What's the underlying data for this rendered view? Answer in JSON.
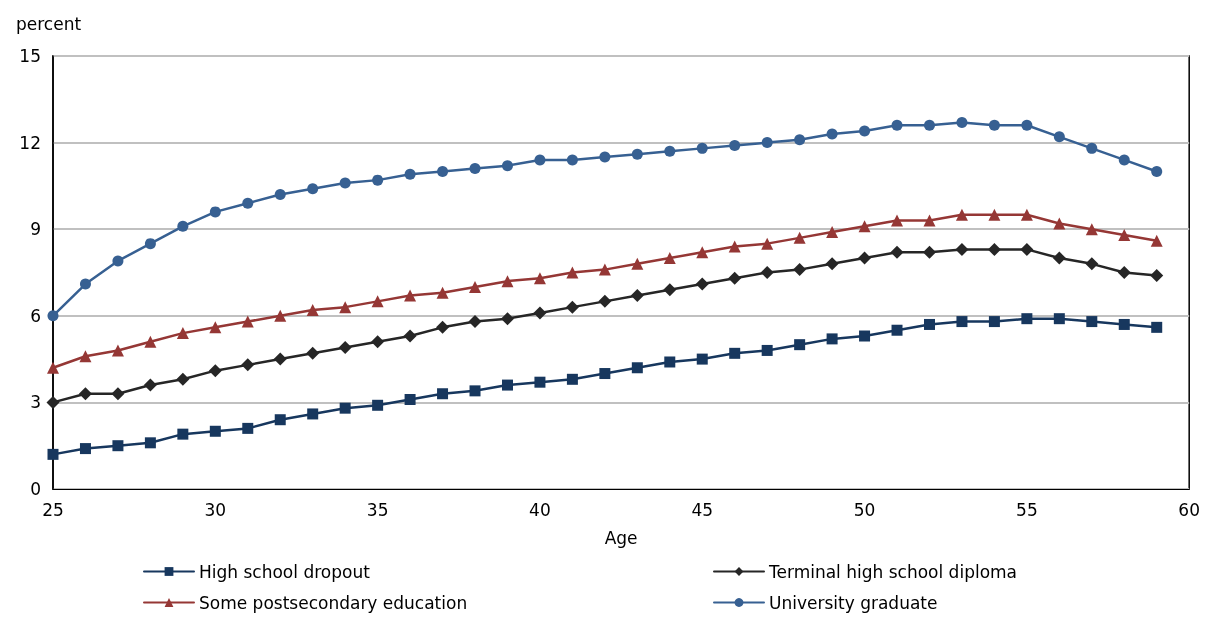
{
  "chart_data": {
    "type": "line",
    "ylabel": "percent",
    "xlabel": "Age",
    "x": [
      25,
      26,
      27,
      28,
      29,
      30,
      31,
      32,
      33,
      34,
      35,
      36,
      37,
      38,
      39,
      40,
      41,
      42,
      43,
      44,
      45,
      46,
      47,
      48,
      49,
      50,
      51,
      52,
      53,
      54,
      55,
      56,
      57,
      58,
      59
    ],
    "xlim": [
      25,
      60
    ],
    "xticks": [
      25,
      30,
      35,
      40,
      45,
      50,
      55,
      60
    ],
    "ylim": [
      0,
      15
    ],
    "yticks": [
      0,
      3,
      6,
      9,
      12,
      15
    ],
    "grid": "y",
    "legend": "bottom",
    "line_style": "solid",
    "series": [
      {
        "name": "High school dropout",
        "color": "#17375e",
        "marker": "square",
        "values": [
          1.2,
          1.4,
          1.5,
          1.6,
          1.9,
          2.0,
          2.1,
          2.4,
          2.6,
          2.8,
          2.9,
          3.1,
          3.3,
          3.4,
          3.6,
          3.7,
          3.8,
          4.0,
          4.2,
          4.4,
          4.5,
          4.7,
          4.8,
          5.0,
          5.2,
          5.3,
          5.5,
          5.7,
          5.8,
          5.8,
          5.9,
          5.9,
          5.8,
          5.7,
          5.6
        ]
      },
      {
        "name": "Terminal high school diploma",
        "color": "#262626",
        "marker": "diamond",
        "values": [
          3.0,
          3.3,
          3.3,
          3.6,
          3.8,
          4.1,
          4.3,
          4.5,
          4.7,
          4.9,
          5.1,
          5.3,
          5.6,
          5.8,
          5.9,
          6.1,
          6.3,
          6.5,
          6.7,
          6.9,
          7.1,
          7.3,
          7.5,
          7.6,
          7.8,
          8.0,
          8.2,
          8.2,
          8.3,
          8.3,
          8.3,
          8.0,
          7.8,
          7.5,
          7.4
        ]
      },
      {
        "name": "Some postsecondary education",
        "color": "#953735",
        "marker": "triangle",
        "values": [
          4.2,
          4.6,
          4.8,
          5.1,
          5.4,
          5.6,
          5.8,
          6.0,
          6.2,
          6.3,
          6.5,
          6.7,
          6.8,
          7.0,
          7.2,
          7.3,
          7.5,
          7.6,
          7.8,
          8.0,
          8.2,
          8.4,
          8.5,
          8.7,
          8.9,
          9.1,
          9.3,
          9.3,
          9.5,
          9.5,
          9.5,
          9.2,
          9.0,
          8.8,
          8.6
        ]
      },
      {
        "name": "University graduate",
        "color": "#376092",
        "marker": "circle",
        "values": [
          6.0,
          7.1,
          7.9,
          8.5,
          9.1,
          9.6,
          9.9,
          10.2,
          10.4,
          10.6,
          10.7,
          10.9,
          11.0,
          11.1,
          11.2,
          11.4,
          11.4,
          11.5,
          11.6,
          11.7,
          11.8,
          11.9,
          12.0,
          12.1,
          12.3,
          12.4,
          12.6,
          12.6,
          12.7,
          12.6,
          12.6,
          12.2,
          11.8,
          11.4,
          11.0
        ]
      }
    ]
  }
}
